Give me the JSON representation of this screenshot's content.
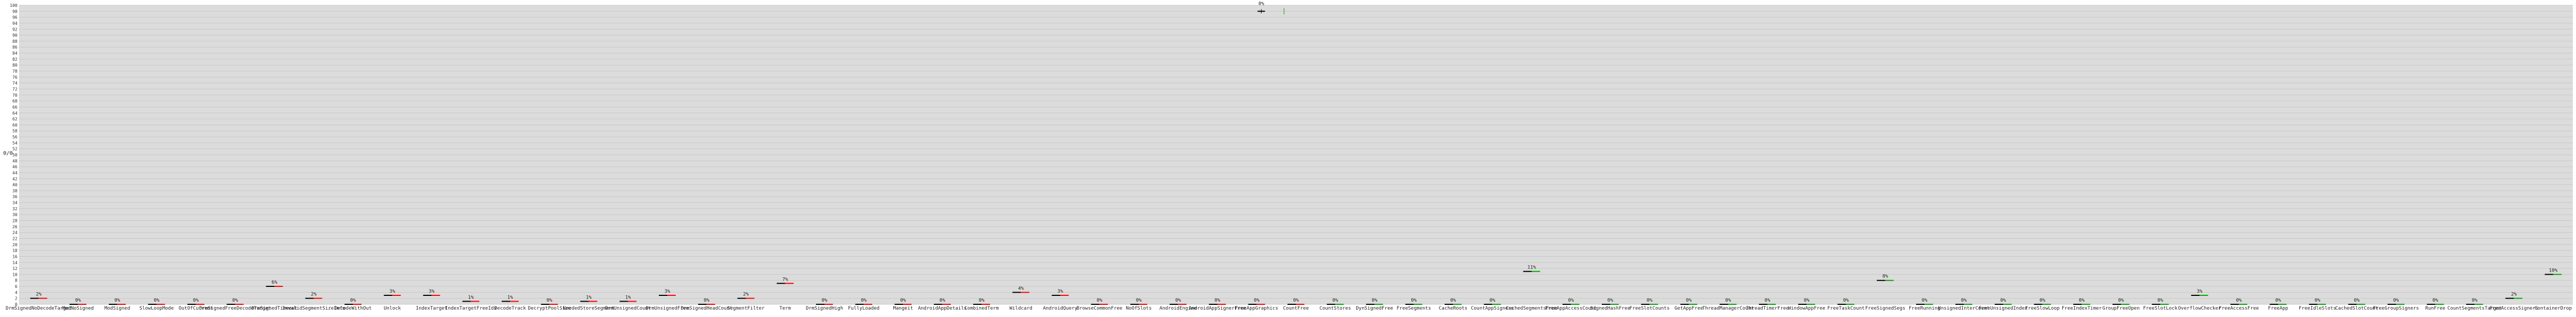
{
  "chart_data": {
    "type": "bar",
    "title": "",
    "xlabel": "",
    "ylabel": "0/0",
    "ylim": [
      0,
      100
    ],
    "grid": true,
    "categories": [
      "DrmSignedNoDecodeTarget",
      "ModNoSigned",
      "ModSigned",
      "SlowLoopMode",
      "OutOfCurrent",
      "DrmSignedFreeDecodeTarget",
      "DrmSignedTimeout",
      "InvalidSegmentSizeInfo",
      "DecodeWithOut",
      "Unlock",
      "IndexTarget",
      "IndexTargetFreeIdx",
      "DecodeTrack",
      "DecryptPoolSize",
      "NeededStoreSegment",
      "DrmUnsignedCount",
      "DrmUnsignedFree",
      "DrmSignedHeadCount",
      "SegmentFilter",
      "Term",
      "DrmSignedHigh",
      "FullyLoaded",
      "Mangeit",
      "AndroidAppDetails",
      "CombinedTerm",
      "Wildcard",
      "AndroidQuery",
      "BrowseCommonFree",
      "NoOfSlots",
      "AndroidEngine",
      "AndroidAppSignerFree",
      "FreeAppGraphics",
      "CountFree",
      "CountStores",
      "DynSignedFree",
      "FreeSegments",
      "CacheRoots",
      "CountAppSigners",
      "CachedSegmentsFree",
      "FreeAppAccessCount",
      "SignedHashFree",
      "FreeSlotCounts",
      "GetAppFree",
      "ThreadManagerCount",
      "ThreadTimerFree",
      "WindowAppFree",
      "FreeTaskCount",
      "FreeSignedSegs",
      "FreeRunning",
      "UnsignedInterCount",
      "FreeUnsignedIndex",
      "FreeSlowLoop",
      "FreeIndexTimer",
      "GroupFreeOpen",
      "FreeSlotLock",
      "OverflowChecker",
      "FreeAccessFree",
      "FreeApp",
      "FreeIdleSlots",
      "CachedSlotCount",
      "FreeGroupSigners",
      "RunFree",
      "CountSegmentsTarget",
      "FreeAccessSigners",
      "ContainerDrop"
    ],
    "values": [
      2,
      0,
      0,
      0,
      0,
      0,
      6,
      2,
      0,
      3,
      3,
      1,
      1,
      0,
      1,
      1,
      3,
      0,
      2,
      7,
      0,
      0,
      0,
      0,
      0,
      4,
      3,
      0,
      0,
      0,
      0,
      0,
      0,
      0,
      0,
      0,
      0,
      0,
      11,
      0,
      0,
      0,
      0,
      0,
      0,
      0,
      0,
      8,
      0,
      0,
      0,
      0,
      0,
      0,
      0,
      3,
      0,
      0,
      0,
      0,
      0,
      0,
      0,
      2,
      10
    ],
    "labels": [
      "2%",
      "0%",
      "0%",
      "0%",
      "0%",
      "0%",
      "6%",
      "2%",
      "0%",
      "3%",
      "3%",
      "1%",
      "1%",
      "0%",
      "1%",
      "1%",
      "3%",
      "0%",
      "2%",
      "7%",
      "0%",
      "0%",
      "0%",
      "0%",
      "0%",
      "4%",
      "3%",
      "0%",
      "0%",
      "0%",
      "0%",
      "0%",
      "0%",
      "0%",
      "0%",
      "0%",
      "0%",
      "0%",
      "11%",
      "0%",
      "0%",
      "0%",
      "0%",
      "0%",
      "0%",
      "0%",
      "0%",
      "8%",
      "0%",
      "0%",
      "0%",
      "0%",
      "0%",
      "0%",
      "0%",
      "3%",
      "0%",
      "0%",
      "0%",
      "0%",
      "0%",
      "0%",
      "0%",
      "2%",
      "10%"
    ],
    "outlier": {
      "value": "0%",
      "x_index": 30
    },
    "colors": {
      "background": "#dcdcdc",
      "grid": "#c8c8c8",
      "mean": "#000000",
      "upper": "#ff0000",
      "lower": "#00aa00"
    }
  }
}
